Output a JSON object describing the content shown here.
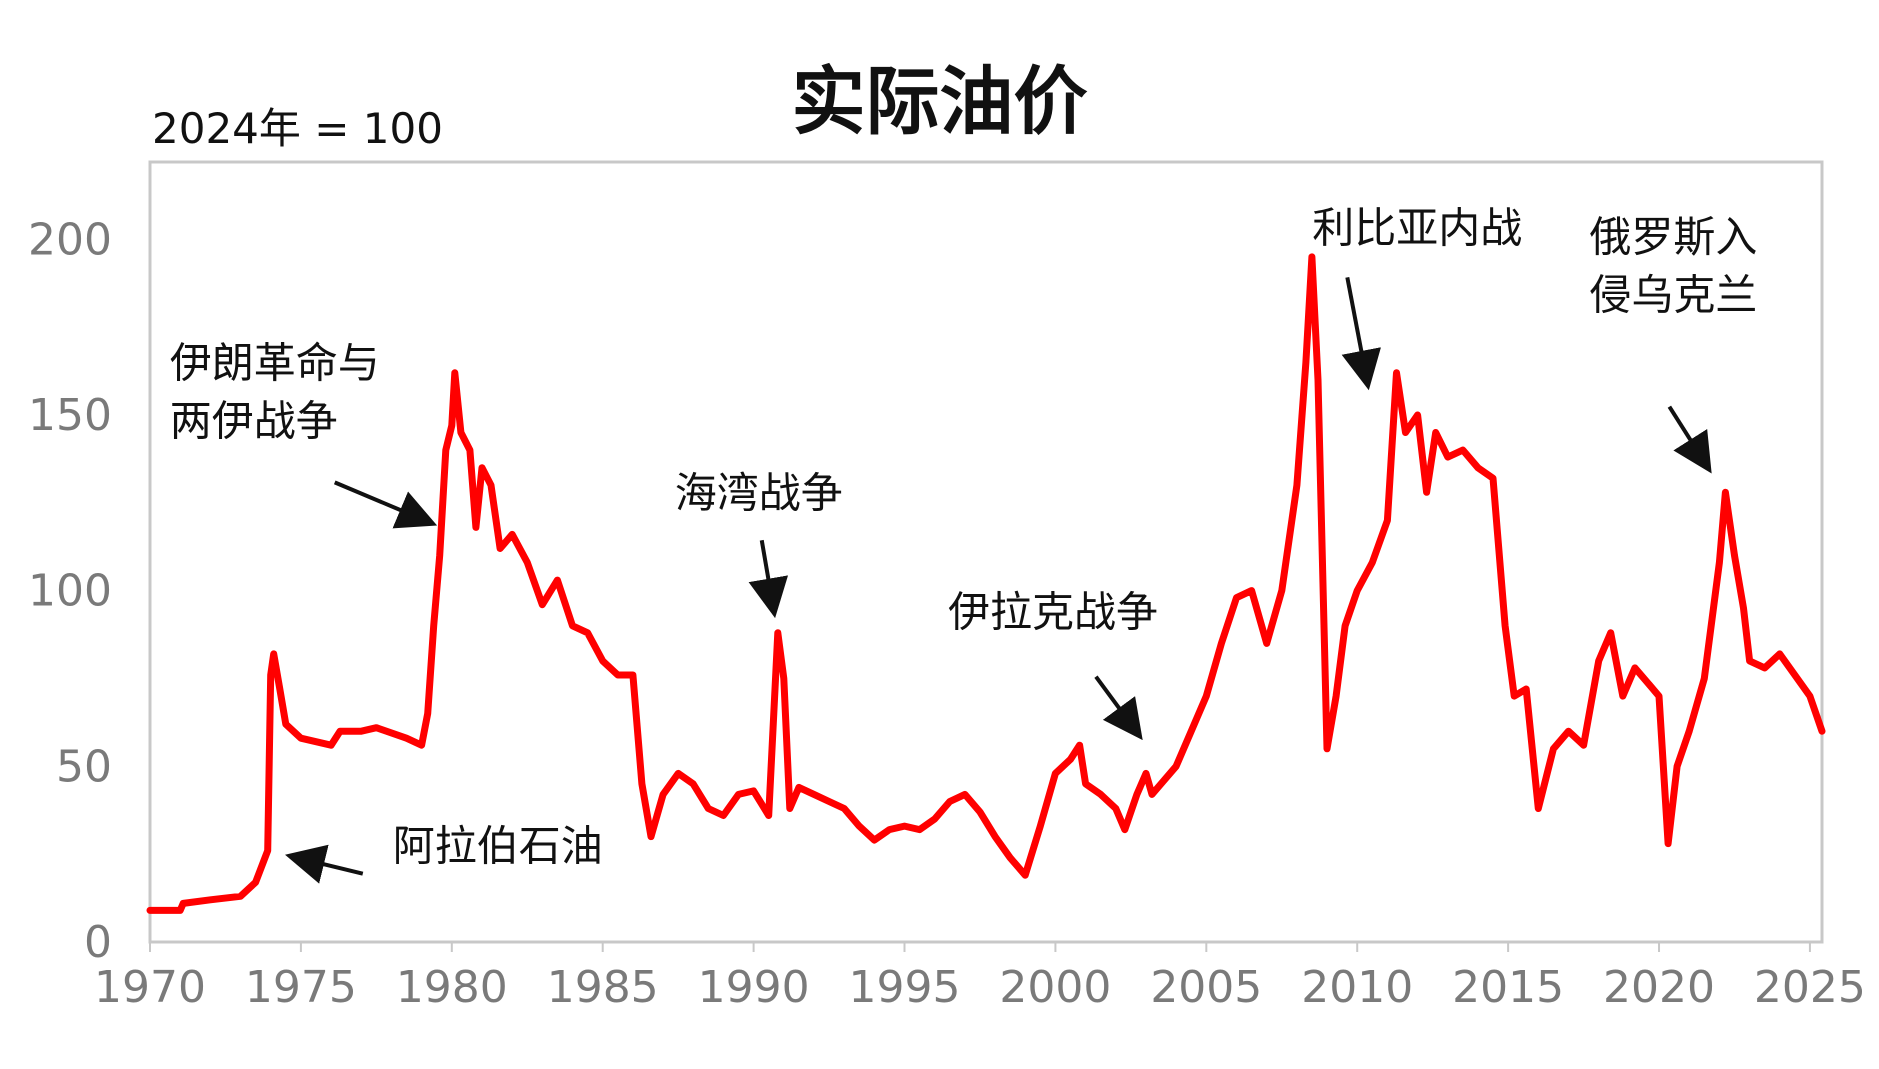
{
  "chart_data": {
    "type": "line",
    "title": "实际油价",
    "unit_label": "2024年 = 100",
    "xlim": [
      1970,
      2025.4
    ],
    "ylim": [
      0,
      222
    ],
    "x_ticks": [
      1970,
      1975,
      1980,
      1985,
      1990,
      1995,
      2000,
      2005,
      2010,
      2015,
      2020,
      2025
    ],
    "y_ticks": [
      0,
      50,
      100,
      150,
      200
    ],
    "grid": false,
    "legend": "none",
    "colors": {
      "line": "#ff0000",
      "axis_text": "#7a7a7a",
      "frame": "#c8c8c8",
      "annotation": "#111111"
    },
    "series": [
      {
        "points": [
          [
            1970.0,
            9
          ],
          [
            1971.0,
            9
          ],
          [
            1971.1,
            11
          ],
          [
            1972.0,
            12
          ],
          [
            1973.0,
            13
          ],
          [
            1973.5,
            17
          ],
          [
            1973.9,
            26
          ],
          [
            1974.0,
            76
          ],
          [
            1974.1,
            82
          ],
          [
            1974.3,
            72
          ],
          [
            1974.5,
            62
          ],
          [
            1975.0,
            58
          ],
          [
            1976.0,
            56
          ],
          [
            1976.3,
            60
          ],
          [
            1977.0,
            60
          ],
          [
            1977.5,
            61
          ],
          [
            1978.5,
            58
          ],
          [
            1979.0,
            56
          ],
          [
            1979.2,
            65
          ],
          [
            1979.4,
            90
          ],
          [
            1979.6,
            110
          ],
          [
            1979.8,
            140
          ],
          [
            1980.0,
            147
          ],
          [
            1980.1,
            162
          ],
          [
            1980.3,
            145
          ],
          [
            1980.6,
            140
          ],
          [
            1980.8,
            118
          ],
          [
            1981.0,
            135
          ],
          [
            1981.3,
            130
          ],
          [
            1981.6,
            112
          ],
          [
            1982.0,
            116
          ],
          [
            1982.5,
            108
          ],
          [
            1983.0,
            96
          ],
          [
            1983.5,
            103
          ],
          [
            1984.0,
            90
          ],
          [
            1984.5,
            88
          ],
          [
            1985.0,
            80
          ],
          [
            1985.5,
            76
          ],
          [
            1986.0,
            76
          ],
          [
            1986.3,
            45
          ],
          [
            1986.6,
            30
          ],
          [
            1987.0,
            42
          ],
          [
            1987.5,
            48
          ],
          [
            1988.0,
            45
          ],
          [
            1988.5,
            38
          ],
          [
            1989.0,
            36
          ],
          [
            1989.5,
            42
          ],
          [
            1990.0,
            43
          ],
          [
            1990.5,
            36
          ],
          [
            1990.8,
            88
          ],
          [
            1991.0,
            75
          ],
          [
            1991.2,
            38
          ],
          [
            1991.5,
            44
          ],
          [
            1992.0,
            42
          ],
          [
            1992.5,
            40
          ],
          [
            1993.0,
            38
          ],
          [
            1993.5,
            33
          ],
          [
            1994.0,
            29
          ],
          [
            1994.5,
            32
          ],
          [
            1995.0,
            33
          ],
          [
            1995.5,
            32
          ],
          [
            1996.0,
            35
          ],
          [
            1996.5,
            40
          ],
          [
            1997.0,
            42
          ],
          [
            1997.5,
            37
          ],
          [
            1998.0,
            30
          ],
          [
            1998.5,
            24
          ],
          [
            1999.0,
            19
          ],
          [
            1999.5,
            33
          ],
          [
            2000.0,
            48
          ],
          [
            2000.5,
            52
          ],
          [
            2000.8,
            56
          ],
          [
            2001.0,
            45
          ],
          [
            2001.5,
            42
          ],
          [
            2002.0,
            38
          ],
          [
            2002.3,
            32
          ],
          [
            2002.7,
            42
          ],
          [
            2003.0,
            48
          ],
          [
            2003.2,
            42
          ],
          [
            2003.5,
            45
          ],
          [
            2004.0,
            50
          ],
          [
            2004.5,
            60
          ],
          [
            2005.0,
            70
          ],
          [
            2005.5,
            85
          ],
          [
            2006.0,
            98
          ],
          [
            2006.5,
            100
          ],
          [
            2007.0,
            85
          ],
          [
            2007.5,
            100
          ],
          [
            2008.0,
            130
          ],
          [
            2008.3,
            165
          ],
          [
            2008.5,
            195
          ],
          [
            2008.7,
            160
          ],
          [
            2008.9,
            90
          ],
          [
            2009.0,
            55
          ],
          [
            2009.3,
            70
          ],
          [
            2009.6,
            90
          ],
          [
            2010.0,
            100
          ],
          [
            2010.5,
            108
          ],
          [
            2011.0,
            120
          ],
          [
            2011.3,
            162
          ],
          [
            2011.6,
            145
          ],
          [
            2012.0,
            150
          ],
          [
            2012.3,
            128
          ],
          [
            2012.6,
            145
          ],
          [
            2013.0,
            138
          ],
          [
            2013.5,
            140
          ],
          [
            2014.0,
            135
          ],
          [
            2014.5,
            132
          ],
          [
            2014.9,
            90
          ],
          [
            2015.2,
            70
          ],
          [
            2015.6,
            72
          ],
          [
            2016.0,
            38
          ],
          [
            2016.5,
            55
          ],
          [
            2017.0,
            60
          ],
          [
            2017.5,
            56
          ],
          [
            2018.0,
            80
          ],
          [
            2018.4,
            88
          ],
          [
            2018.8,
            70
          ],
          [
            2019.2,
            78
          ],
          [
            2019.6,
            74
          ],
          [
            2020.0,
            70
          ],
          [
            2020.3,
            28
          ],
          [
            2020.6,
            50
          ],
          [
            2021.0,
            60
          ],
          [
            2021.5,
            75
          ],
          [
            2022.0,
            108
          ],
          [
            2022.2,
            128
          ],
          [
            2022.5,
            110
          ],
          [
            2022.8,
            95
          ],
          [
            2023.0,
            80
          ],
          [
            2023.5,
            78
          ],
          [
            2024.0,
            82
          ],
          [
            2024.5,
            76
          ],
          [
            2025.0,
            70
          ],
          [
            2025.4,
            60
          ]
        ]
      }
    ],
    "annotations": [
      {
        "text": "伊朗革命与\n两伊战争",
        "x": 1979.6,
        "y": 118
      },
      {
        "text": "阿拉伯石油",
        "x": 1974.4,
        "y": 26
      },
      {
        "text": "海湾战争",
        "x": 1990.7,
        "y": 91
      },
      {
        "text": "伊拉克战争",
        "x": 2003.0,
        "y": 57
      },
      {
        "text": "利比亚内战",
        "x": 2010.5,
        "y": 155
      },
      {
        "text": "俄罗斯入\n侵乌克兰",
        "x": 2022.0,
        "y": 131
      }
    ]
  }
}
